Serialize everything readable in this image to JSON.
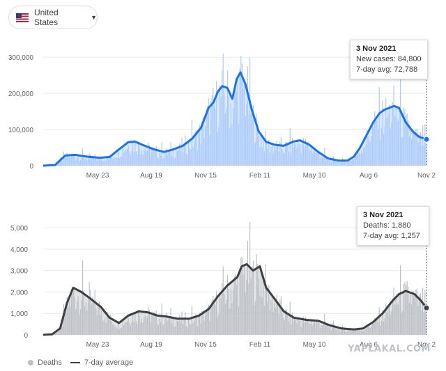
{
  "country_selector": {
    "flag_icon": "us-flag-icon",
    "label": "United States",
    "caret_icon": "dropdown-caret-icon"
  },
  "colors": {
    "cases_bar": "#aecbfa",
    "cases_line": "#1a73e8",
    "deaths_bar": "#bdc1c6",
    "deaths_line": "#3c4043"
  },
  "tooltips": {
    "cases": {
      "date": "3 Nov 2021",
      "line1": "New cases: 84,800",
      "line2": "7-day avg: 72,788"
    },
    "deaths": {
      "date": "3 Nov 2021",
      "line1": "Deaths: 1,880",
      "line2": "7-day avg: 1,257"
    }
  },
  "legend": {
    "deaths_label": "Deaths",
    "avg_label": "7-day average"
  },
  "watermark": "YAPLAKAL.COM",
  "chart_data": [
    {
      "type": "area",
      "title": "",
      "x_ticks": [
        "May 23",
        "Aug 19",
        "Nov 15",
        "Feb 11",
        "May 10",
        "Aug 6",
        "Nov 2"
      ],
      "y_ticks": [
        "0",
        "100,000",
        "200,000",
        "300,000"
      ],
      "ylim": [
        0,
        310000
      ],
      "grid": true,
      "series": [
        {
          "name": "7-day avg",
          "x": [
            "2020-03-01",
            "2020-03-20",
            "2020-04-05",
            "2020-04-20",
            "2020-05-10",
            "2020-05-30",
            "2020-06-15",
            "2020-06-30",
            "2020-07-15",
            "2020-07-25",
            "2020-08-10",
            "2020-08-25",
            "2020-09-10",
            "2020-09-25",
            "2020-10-10",
            "2020-10-25",
            "2020-11-08",
            "2020-11-20",
            "2020-11-28",
            "2020-12-05",
            "2020-12-12",
            "2020-12-20",
            "2020-12-28",
            "2021-01-04",
            "2021-01-10",
            "2021-01-18",
            "2021-01-28",
            "2021-02-08",
            "2021-02-20",
            "2021-03-05",
            "2021-03-20",
            "2021-04-05",
            "2021-04-15",
            "2021-04-30",
            "2021-05-15",
            "2021-05-30",
            "2021-06-15",
            "2021-06-30",
            "2021-07-10",
            "2021-07-20",
            "2021-08-01",
            "2021-08-10",
            "2021-08-20",
            "2021-08-28",
            "2021-09-05",
            "2021-09-12",
            "2021-09-20",
            "2021-10-01",
            "2021-10-12",
            "2021-10-22",
            "2021-11-03"
          ],
          "y": [
            0,
            2000,
            28000,
            30000,
            25000,
            22000,
            24000,
            45000,
            65000,
            67000,
            55000,
            45000,
            38000,
            45000,
            55000,
            75000,
            105000,
            160000,
            175000,
            205000,
            220000,
            215000,
            185000,
            240000,
            258000,
            225000,
            155000,
            95000,
            66000,
            58000,
            55000,
            67000,
            70000,
            58000,
            37000,
            20000,
            14000,
            14000,
            25000,
            50000,
            90000,
            120000,
            145000,
            155000,
            160000,
            165000,
            160000,
            120000,
            95000,
            80000,
            72788
          ]
        }
      ]
    },
    {
      "type": "area",
      "title": "",
      "x_ticks": [
        "May 23",
        "Aug 19",
        "Nov 15",
        "Feb 11",
        "May 10",
        "Aug 6",
        "Nov 2"
      ],
      "y_ticks": [
        "0",
        "1,000",
        "2,000",
        "3,000",
        "4,000",
        "5,000"
      ],
      "ylim": [
        0,
        5300
      ],
      "grid": true,
      "series": [
        {
          "name": "Deaths"
        },
        {
          "name": "7-day average",
          "x": [
            "2020-03-01",
            "2020-03-15",
            "2020-03-28",
            "2020-04-08",
            "2020-04-18",
            "2020-05-01",
            "2020-05-15",
            "2020-06-01",
            "2020-06-15",
            "2020-06-30",
            "2020-07-15",
            "2020-08-01",
            "2020-08-15",
            "2020-08-30",
            "2020-09-15",
            "2020-10-01",
            "2020-10-20",
            "2020-11-05",
            "2020-11-20",
            "2020-12-05",
            "2020-12-20",
            "2021-01-05",
            "2021-01-12",
            "2021-01-20",
            "2021-01-30",
            "2021-02-10",
            "2021-02-20",
            "2021-03-05",
            "2021-03-20",
            "2021-04-05",
            "2021-04-25",
            "2021-05-15",
            "2021-06-01",
            "2021-06-20",
            "2021-07-10",
            "2021-07-25",
            "2021-08-10",
            "2021-08-25",
            "2021-09-10",
            "2021-09-20",
            "2021-10-01",
            "2021-10-15",
            "2021-10-25",
            "2021-11-03"
          ],
          "y": [
            0,
            20,
            300,
            1500,
            2200,
            2000,
            1700,
            1300,
            800,
            550,
            900,
            1100,
            1050,
            900,
            850,
            750,
            750,
            900,
            1200,
            1800,
            2300,
            2700,
            3200,
            3300,
            3000,
            3200,
            2200,
            1700,
            1100,
            800,
            700,
            650,
            450,
            300,
            250,
            300,
            600,
            1000,
            1600,
            1900,
            2050,
            1900,
            1600,
            1257
          ]
        }
      ]
    }
  ]
}
